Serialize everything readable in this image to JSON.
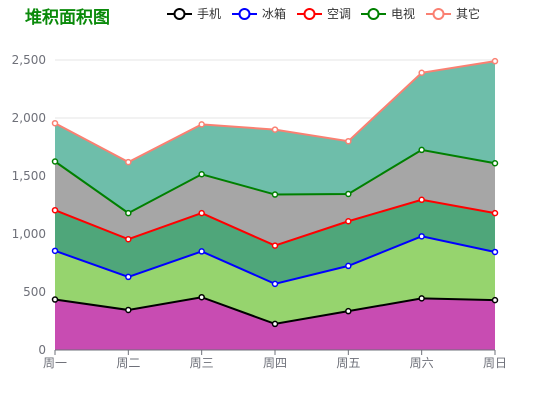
{
  "chart_data": {
    "type": "area",
    "stacked": true,
    "title": "堆积面积图",
    "title_color": "#0a8a0a",
    "categories": [
      "周一",
      "周二",
      "周三",
      "周四",
      "周五",
      "周六",
      "周日"
    ],
    "ylim": [
      0,
      2500
    ],
    "yticks": [
      0,
      500,
      1000,
      1500,
      2000,
      2500
    ],
    "ytick_labels": [
      "0",
      "500",
      "1,000",
      "1,500",
      "2,000",
      "2,500"
    ],
    "grid": true,
    "legend_position": "top",
    "series": [
      {
        "name": "手机",
        "values": [
          435,
          345,
          455,
          225,
          335,
          445,
          430
        ],
        "line_color": "#000000",
        "fill_color": "#c84cb2"
      },
      {
        "name": "冰箱",
        "values": [
          420,
          285,
          395,
          345,
          390,
          535,
          415
        ],
        "line_color": "#0000ff",
        "fill_color": "#96d46e"
      },
      {
        "name": "空调",
        "values": [
          350,
          325,
          330,
          330,
          385,
          315,
          335
        ],
        "line_color": "#ff0000",
        "fill_color": "#4fa67a"
      },
      {
        "name": "电视",
        "values": [
          420,
          225,
          335,
          440,
          235,
          430,
          430
        ],
        "line_color": "#008000",
        "fill_color": "#a6a6a6"
      },
      {
        "name": "其它",
        "values": [
          330,
          440,
          430,
          560,
          455,
          665,
          880
        ],
        "line_color": "#fa8072",
        "fill_color": "#6ebeaa"
      }
    ]
  }
}
